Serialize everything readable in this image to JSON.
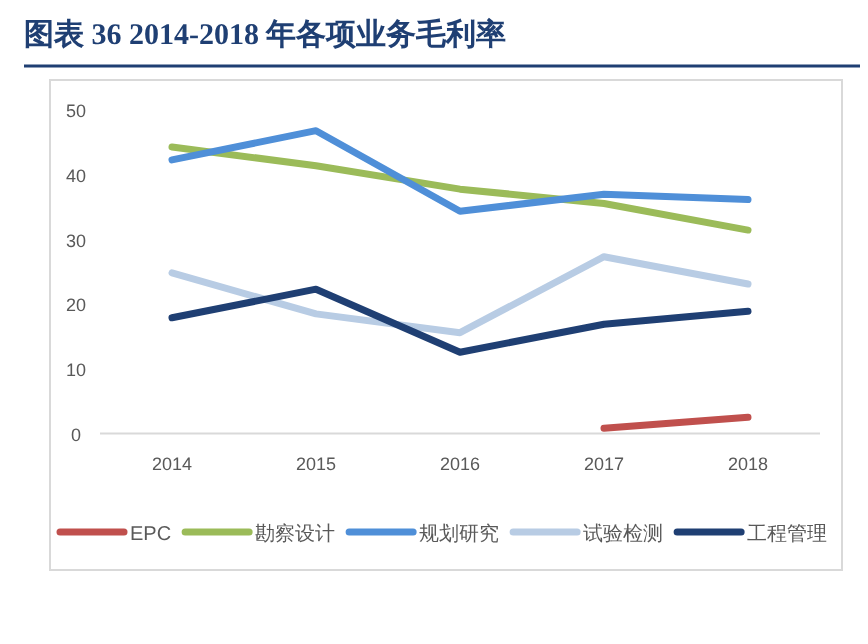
{
  "chart_data": {
    "type": "line",
    "title": "图表 36   2014-2018 年各项业务毛利率",
    "categories": [
      "2014",
      "2015",
      "2016",
      "2017",
      "2018"
    ],
    "series": [
      {
        "name": "EPC",
        "color": "#c0504d",
        "values": [
          null,
          null,
          null,
          0.8,
          2.5
        ]
      },
      {
        "name": "勘察设计",
        "color": "#9bbb59",
        "values": [
          44.1,
          41.2,
          37.6,
          35.4,
          31.3
        ]
      },
      {
        "name": "规划研究",
        "color": "#4f8fd8",
        "values": [
          42.1,
          46.6,
          34.2,
          36.8,
          36.0
        ]
      },
      {
        "name": "试验检测",
        "color": "#b8cce4",
        "values": [
          24.7,
          18.4,
          15.5,
          27.2,
          23.0
        ]
      },
      {
        "name": "工程管理",
        "color": "#1f3f73",
        "values": [
          17.8,
          22.2,
          12.5,
          16.8,
          18.8
        ]
      }
    ],
    "ylim": [
      0,
      50
    ],
    "yticks": [
      0,
      10,
      20,
      30,
      40,
      50
    ],
    "grid": false,
    "legend": "bottom",
    "marker": "none",
    "line_style": "solid"
  }
}
